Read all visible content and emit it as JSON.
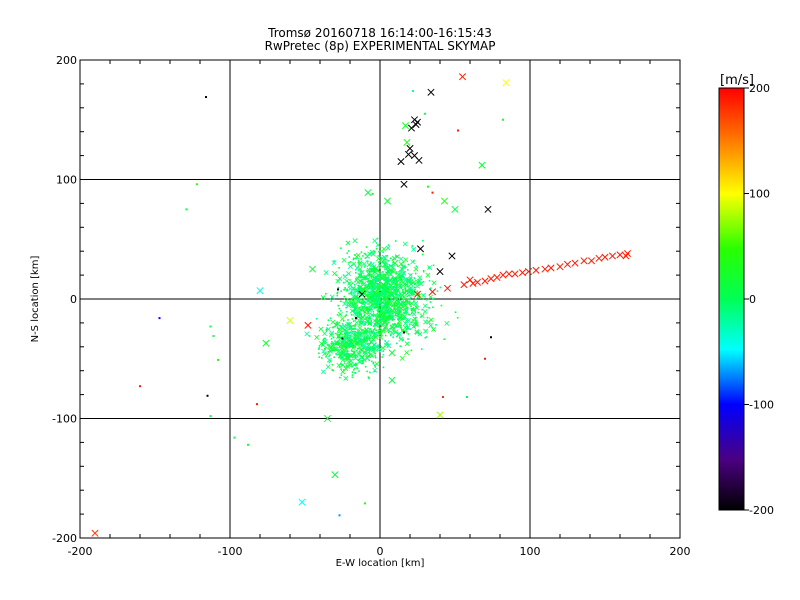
{
  "chart_data": {
    "type": "scatter",
    "title": "Tromsø 20160718 16:14:00-16:15:43",
    "subtitle": "RwPretec (8p) EXPERIMENTAL SKYMAP",
    "xlabel": "E-W location [km]",
    "ylabel": "N-S location [km]",
    "xlim": [
      -200,
      200
    ],
    "ylim": [
      -200,
      200
    ],
    "xticks": [
      -200,
      -100,
      0,
      100,
      200
    ],
    "yticks": [
      -200,
      -100,
      0,
      100,
      200
    ],
    "grid": "lines at -100, 0 and 100 km on both axes",
    "colorbar": {
      "unit_label": "[m/s]",
      "min": -200,
      "max": 200,
      "ticks": [
        -200,
        -100,
        0,
        100,
        200
      ],
      "colormap": "black-purple-blue-cyan-green-yellow-red"
    },
    "markers": {
      "small": "dot",
      "large": "cross"
    },
    "points": [
      [
        -190,
        -196,
        180,
        "x"
      ],
      [
        -160,
        -73,
        190,
        "dot"
      ],
      [
        -147,
        -16,
        -100,
        "dot"
      ],
      [
        -122,
        96,
        40,
        "dot"
      ],
      [
        -129,
        75,
        10,
        "dot"
      ],
      [
        -116,
        169,
        -200,
        "dot"
      ],
      [
        -115,
        -81,
        -200,
        "dot"
      ],
      [
        -113,
        -98,
        10,
        "dot"
      ],
      [
        -113,
        -23,
        20,
        "dot"
      ],
      [
        -111,
        -31,
        20,
        "dot"
      ],
      [
        -108,
        -51,
        40,
        "dot"
      ],
      [
        -97,
        -116,
        10,
        "dot"
      ],
      [
        -88,
        -122,
        20,
        "dot"
      ],
      [
        -82,
        -88,
        190,
        "dot"
      ],
      [
        -80,
        7,
        -40,
        "x"
      ],
      [
        -76,
        -37,
        20,
        "x"
      ],
      [
        -60,
        -18,
        90,
        "x"
      ],
      [
        -52,
        -170,
        -50,
        "x"
      ],
      [
        -48,
        -22,
        190,
        "x"
      ],
      [
        -45,
        25,
        20,
        "x"
      ],
      [
        -35,
        -100,
        20,
        "x"
      ],
      [
        -30,
        -147,
        10,
        "x"
      ],
      [
        -27,
        -181,
        -70,
        "dot"
      ],
      [
        -28,
        8,
        -200,
        "dot"
      ],
      [
        -25,
        -33,
        -200,
        "dot"
      ],
      [
        -20,
        -2,
        20,
        "x"
      ],
      [
        -16,
        -16,
        -200,
        "dot"
      ],
      [
        -12,
        4,
        -200,
        "x"
      ],
      [
        -10,
        -171,
        40,
        "dot"
      ],
      [
        -10,
        5,
        20,
        "x"
      ],
      [
        -8,
        89,
        10,
        "x"
      ],
      [
        -5,
        88,
        20,
        "dot"
      ],
      [
        -3,
        25,
        10,
        "x"
      ],
      [
        0,
        40,
        20,
        "dot"
      ],
      [
        3,
        -20,
        20,
        "x"
      ],
      [
        4,
        -5,
        20,
        "x"
      ],
      [
        5,
        82,
        20,
        "x"
      ],
      [
        8,
        -68,
        10,
        "x"
      ],
      [
        8,
        -45,
        20,
        "x"
      ],
      [
        10,
        30,
        20,
        "x"
      ],
      [
        14,
        115,
        -200,
        "x"
      ],
      [
        16,
        96,
        -200,
        "x"
      ],
      [
        16,
        -28,
        -200,
        "dot"
      ],
      [
        17,
        145,
        30,
        "x"
      ],
      [
        18,
        131,
        40,
        "x"
      ],
      [
        19,
        121,
        -200,
        "x"
      ],
      [
        20,
        126,
        -200,
        "x"
      ],
      [
        21,
        143,
        -200,
        "x"
      ],
      [
        22,
        174,
        -30,
        "dot"
      ],
      [
        23,
        120,
        -200,
        "x"
      ],
      [
        23,
        150,
        -200,
        "x"
      ],
      [
        24,
        146,
        -200,
        "x"
      ],
      [
        25,
        148,
        -200,
        "x"
      ],
      [
        26,
        116,
        -200,
        "x"
      ],
      [
        25,
        4,
        190,
        "x"
      ],
      [
        27,
        42,
        -200,
        "x"
      ],
      [
        30,
        155,
        20,
        "dot"
      ],
      [
        32,
        94,
        40,
        "dot"
      ],
      [
        35,
        89,
        190,
        "dot"
      ],
      [
        34,
        173,
        -200,
        "x"
      ],
      [
        35,
        6,
        190,
        "x"
      ],
      [
        40,
        23,
        -200,
        "x"
      ],
      [
        40,
        -97,
        80,
        "x"
      ],
      [
        42,
        -82,
        180,
        "dot"
      ],
      [
        43,
        82,
        40,
        "x"
      ],
      [
        45,
        9,
        190,
        "x"
      ],
      [
        48,
        36,
        -200,
        "x"
      ],
      [
        50,
        75,
        10,
        "x"
      ],
      [
        52,
        141,
        190,
        "dot"
      ],
      [
        55,
        186,
        190,
        "x"
      ],
      [
        56,
        12,
        190,
        "x"
      ],
      [
        58,
        -82,
        0,
        "dot"
      ],
      [
        60,
        16,
        190,
        "x"
      ],
      [
        62,
        13,
        190,
        "x"
      ],
      [
        65,
        14,
        190,
        "x"
      ],
      [
        68,
        112,
        20,
        "x"
      ],
      [
        70,
        15,
        190,
        "x"
      ],
      [
        72,
        75,
        -200,
        "x"
      ],
      [
        74,
        17,
        190,
        "x"
      ],
      [
        70,
        -50,
        190,
        "dot"
      ],
      [
        74,
        -32,
        -200,
        "dot"
      ],
      [
        78,
        18,
        190,
        "x"
      ],
      [
        82,
        20,
        190,
        "x"
      ],
      [
        82,
        150,
        20,
        "dot"
      ],
      [
        84,
        181,
        100,
        "x"
      ],
      [
        86,
        21,
        190,
        "x"
      ],
      [
        90,
        21,
        190,
        "x"
      ],
      [
        95,
        22,
        190,
        "x"
      ],
      [
        99,
        23,
        190,
        "x"
      ],
      [
        104,
        24,
        190,
        "x"
      ],
      [
        110,
        25,
        190,
        "x"
      ],
      [
        114,
        26,
        190,
        "x"
      ],
      [
        120,
        27,
        190,
        "x"
      ],
      [
        125,
        29,
        190,
        "x"
      ],
      [
        130,
        30,
        190,
        "x"
      ],
      [
        136,
        32,
        190,
        "x"
      ],
      [
        141,
        32,
        190,
        "x"
      ],
      [
        146,
        34,
        190,
        "x"
      ],
      [
        150,
        35,
        190,
        "x"
      ],
      [
        155,
        36,
        190,
        "x"
      ],
      [
        160,
        37,
        190,
        "x"
      ],
      [
        164,
        36,
        190,
        "x"
      ],
      [
        165,
        38,
        190,
        "x"
      ]
    ]
  }
}
